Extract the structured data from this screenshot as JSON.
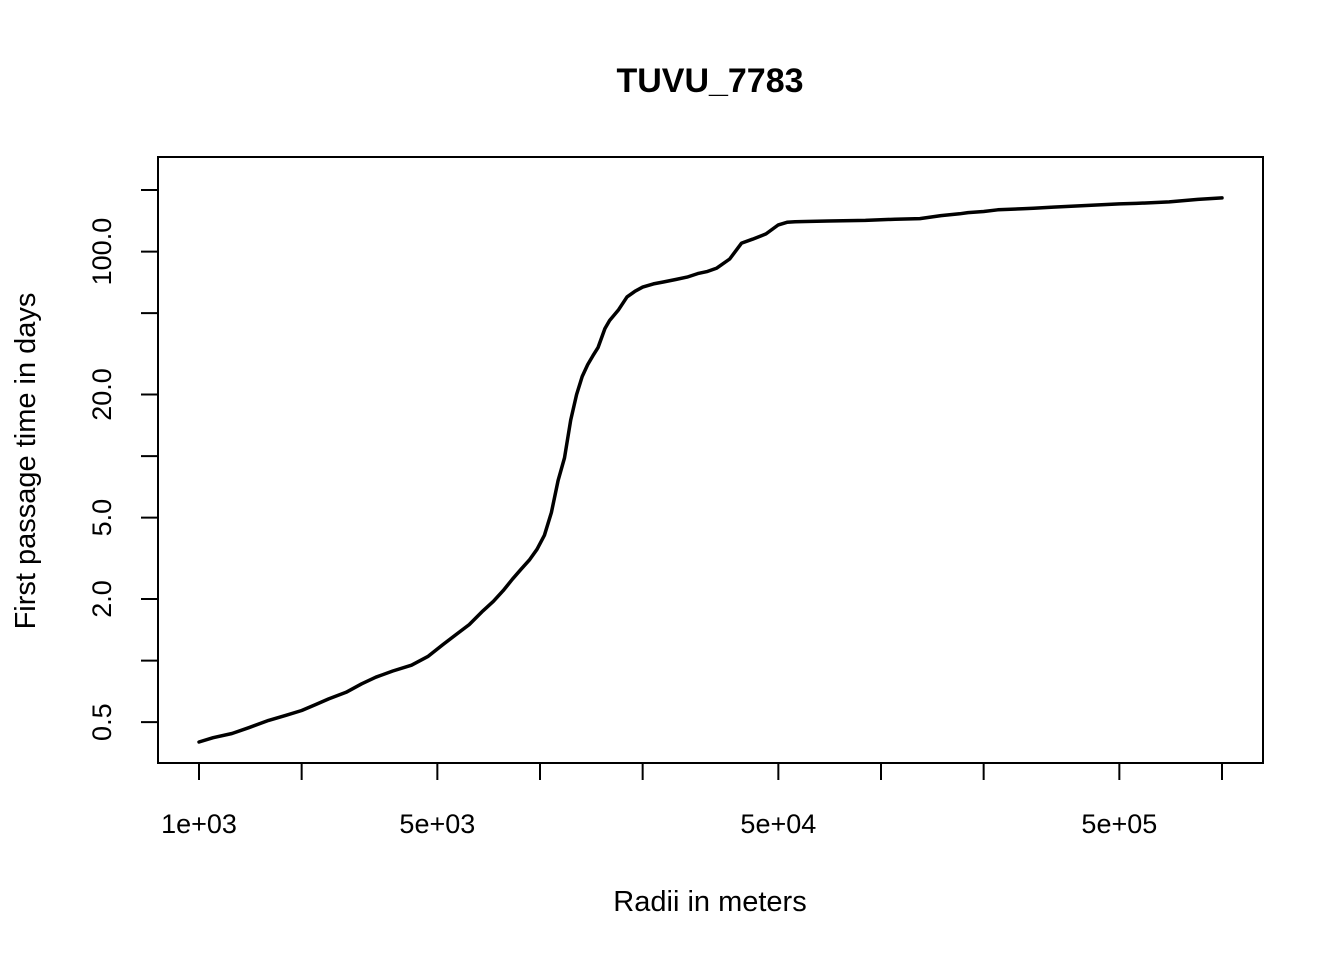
{
  "chart_data": {
    "type": "line",
    "title": "TUVU_7783",
    "xlabel": "Radii in meters",
    "ylabel": "First passage time in days",
    "x_scale": "log",
    "y_scale": "log",
    "xlim": [
      1000,
      1000000
    ],
    "ylim": [
      0.4,
      200
    ],
    "x_ticks": [
      1000,
      2000,
      5000,
      10000,
      20000,
      50000,
      100000,
      200000,
      500000,
      1000000
    ],
    "x_tick_labels": [
      {
        "value": 1000,
        "label": "1e+03"
      },
      {
        "value": 5000,
        "label": "5e+03"
      },
      {
        "value": 50000,
        "label": "5e+04"
      },
      {
        "value": 500000,
        "label": "5e+05"
      }
    ],
    "y_ticks": [
      0.5,
      1,
      2,
      5,
      10,
      20,
      50,
      100,
      200
    ],
    "y_tick_labels": [
      {
        "value": 0.5,
        "label": "0.5"
      },
      {
        "value": 2,
        "label": "2.0"
      },
      {
        "value": 5,
        "label": "5.0"
      },
      {
        "value": 20,
        "label": "20.0"
      },
      {
        "value": 100,
        "label": "100.0"
      }
    ],
    "grid": false,
    "line_color": "#000000",
    "series": [
      {
        "x": [
          1000,
          1100,
          1250,
          1400,
          1600,
          1800,
          2000,
          2200,
          2400,
          2700,
          3000,
          3300,
          3700,
          4200,
          4700,
          5200,
          5700,
          6200,
          6800,
          7300,
          7800,
          8300,
          8800,
          9300,
          9800,
          10300,
          10800,
          11300,
          11800,
          12300,
          12800,
          13300,
          13800,
          14300,
          14800,
          15500,
          16000,
          17000,
          18000,
          19000,
          20000,
          21500,
          23000,
          25000,
          27000,
          29000,
          31000,
          33000,
          36000,
          39000,
          42000,
          46000,
          50000,
          53000,
          56000,
          60000,
          70000,
          90000,
          110000,
          130000,
          150000,
          170000,
          180000,
          200000,
          220000,
          240000,
          260000,
          280000,
          320000,
          400000,
          500000,
          560000,
          700000,
          850000,
          1000000
        ],
        "values": [
          0.4,
          0.42,
          0.44,
          0.47,
          0.51,
          0.54,
          0.57,
          0.61,
          0.65,
          0.7,
          0.77,
          0.83,
          0.89,
          0.95,
          1.05,
          1.2,
          1.35,
          1.5,
          1.75,
          1.95,
          2.2,
          2.5,
          2.8,
          3.1,
          3.5,
          4.1,
          5.3,
          7.6,
          9.8,
          15.0,
          20.0,
          24.5,
          28.0,
          31.0,
          34.0,
          42.0,
          46.0,
          52.0,
          60.0,
          64.0,
          67.0,
          69.5,
          71.0,
          73.0,
          75.0,
          78.0,
          80.0,
          83.0,
          92.0,
          110.0,
          115.0,
          122.0,
          135.0,
          139.0,
          140.0,
          140.3,
          141.0,
          142.0,
          144.0,
          145.0,
          150.0,
          153.0,
          155.0,
          157.0,
          160.0,
          161.0,
          162.0,
          163.0,
          165.0,
          168.0,
          171.0,
          172.0,
          175.0,
          180.0,
          183.0
        ]
      }
    ]
  }
}
